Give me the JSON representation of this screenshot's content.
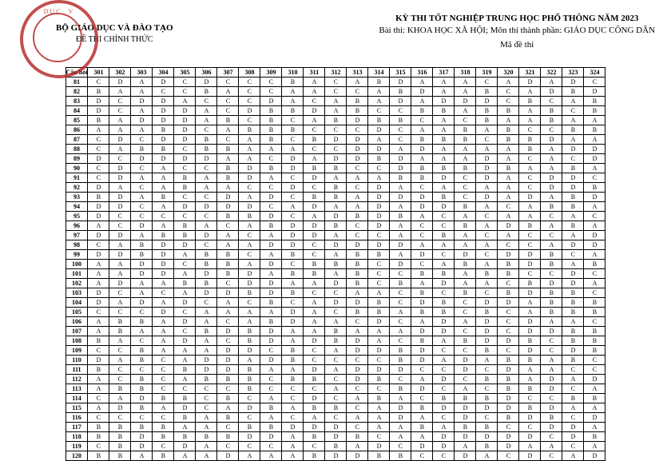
{
  "header": {
    "ministry": "BỘ GIÁO DỤC VÀ ĐÀO TẠO",
    "official": "ĐỀ THI CHÍNH THỨC",
    "exam_title": "KỲ THI TỐT NGHIỆP TRUNG HỌC PHỔ THÔNG NĂM 2023",
    "subject_line": "Bài thi: KHOA HỌC XÃ HỘI; Môn thi thành phần: GIÁO DỤC CÔNG DÂN",
    "made_thi": "Mã đề thi"
  },
  "cols_label": "Câu hỏi",
  "codes": [
    "301",
    "302",
    "303",
    "304",
    "305",
    "306",
    "307",
    "308",
    "309",
    "310",
    "311",
    "312",
    "313",
    "314",
    "315",
    "316",
    "317",
    "318",
    "319",
    "320",
    "321",
    "322",
    "323",
    "324"
  ],
  "rows": [
    {
      "q": "81",
      "a": [
        "C",
        "D",
        "A",
        "D",
        "C",
        "D",
        "C",
        "C",
        "C",
        "B",
        "A",
        "C",
        "A",
        "B",
        "D",
        "A",
        "A",
        "A",
        "C",
        "A",
        "D",
        "A",
        "D",
        "C"
      ]
    },
    {
      "q": "82",
      "a": [
        "B",
        "A",
        "A",
        "C",
        "C",
        "B",
        "A",
        "C",
        "C",
        "A",
        "A",
        "C",
        "C",
        "A",
        "B",
        "D",
        "A",
        "A",
        "B",
        "C",
        "A",
        "D",
        "B",
        "D"
      ]
    },
    {
      "q": "83",
      "a": [
        "D",
        "C",
        "D",
        "D",
        "A",
        "C",
        "C",
        "C",
        "D",
        "A",
        "C",
        "A",
        "B",
        "A",
        "D",
        "A",
        "D",
        "D",
        "D",
        "C",
        "B",
        "C",
        "A",
        "B"
      ]
    },
    {
      "q": "84",
      "a": [
        "D",
        "C",
        "A",
        "D",
        "D",
        "A",
        "C",
        "D",
        "B",
        "B",
        "D",
        "A",
        "B",
        "C",
        "C",
        "B",
        "B",
        "A",
        "B",
        "B",
        "A",
        "B",
        "C",
        "B"
      ]
    },
    {
      "q": "85",
      "a": [
        "B",
        "A",
        "D",
        "D",
        "D",
        "A",
        "B",
        "C",
        "B",
        "C",
        "A",
        "B",
        "D",
        "B",
        "B",
        "C",
        "A",
        "C",
        "B",
        "A",
        "A",
        "B",
        "A",
        "A"
      ]
    },
    {
      "q": "86",
      "a": [
        "A",
        "A",
        "A",
        "B",
        "D",
        "C",
        "A",
        "B",
        "B",
        "B",
        "C",
        "C",
        "C",
        "D",
        "C",
        "A",
        "A",
        "B",
        "A",
        "B",
        "C",
        "C",
        "B",
        "B"
      ]
    },
    {
      "q": "87",
      "a": [
        "C",
        "D",
        "C",
        "D",
        "D",
        "B",
        "C",
        "A",
        "B",
        "C",
        "B",
        "D",
        "D",
        "A",
        "C",
        "B",
        "B",
        "B",
        "C",
        "B",
        "B",
        "D",
        "A",
        "A"
      ]
    },
    {
      "q": "88",
      "a": [
        "C",
        "A",
        "B",
        "B",
        "C",
        "B",
        "B",
        "A",
        "A",
        "A",
        "C",
        "C",
        "D",
        "D",
        "A",
        "D",
        "A",
        "A",
        "A",
        "A",
        "B",
        "A",
        "D",
        "D"
      ]
    },
    {
      "q": "89",
      "a": [
        "D",
        "C",
        "D",
        "D",
        "D",
        "D",
        "A",
        "A",
        "C",
        "D",
        "A",
        "D",
        "D",
        "B",
        "D",
        "A",
        "A",
        "A",
        "D",
        "A",
        "C",
        "A",
        "C",
        "D"
      ]
    },
    {
      "q": "90",
      "a": [
        "C",
        "D",
        "C",
        "A",
        "C",
        "C",
        "B",
        "D",
        "B",
        "D",
        "B",
        "B",
        "C",
        "C",
        "D",
        "B",
        "B",
        "B",
        "D",
        "B",
        "A",
        "A",
        "B",
        "A"
      ]
    },
    {
      "q": "91",
      "a": [
        "C",
        "D",
        "A",
        "A",
        "B",
        "A",
        "B",
        "D",
        "A",
        "C",
        "D",
        "A",
        "A",
        "A",
        "B",
        "B",
        "D",
        "C",
        "D",
        "A",
        "C",
        "D",
        "D",
        "C"
      ]
    },
    {
      "q": "92",
      "a": [
        "D",
        "A",
        "C",
        "A",
        "B",
        "A",
        "A",
        "C",
        "C",
        "D",
        "C",
        "B",
        "C",
        "D",
        "A",
        "C",
        "A",
        "C",
        "A",
        "A",
        "C",
        "D",
        "D",
        "B"
      ]
    },
    {
      "q": "93",
      "a": [
        "B",
        "D",
        "A",
        "B",
        "C",
        "C",
        "D",
        "A",
        "D",
        "C",
        "B",
        "B",
        "A",
        "D",
        "D",
        "D",
        "B",
        "C",
        "D",
        "A",
        "D",
        "A",
        "B",
        "D"
      ]
    },
    {
      "q": "94",
      "a": [
        "D",
        "D",
        "C",
        "A",
        "D",
        "D",
        "D",
        "D",
        "C",
        "A",
        "D",
        "A",
        "A",
        "D",
        "A",
        "D",
        "D",
        "B",
        "A",
        "C",
        "A",
        "B",
        "B",
        "A"
      ]
    },
    {
      "q": "95",
      "a": [
        "D",
        "C",
        "C",
        "C",
        "C",
        "C",
        "B",
        "B",
        "D",
        "C",
        "A",
        "D",
        "B",
        "D",
        "B",
        "A",
        "C",
        "A",
        "C",
        "A",
        "A",
        "C",
        "A",
        "C"
      ]
    },
    {
      "q": "96",
      "a": [
        "A",
        "C",
        "D",
        "A",
        "B",
        "A",
        "C",
        "A",
        "B",
        "D",
        "D",
        "B",
        "C",
        "D",
        "A",
        "C",
        "C",
        "B",
        "A",
        "D",
        "B",
        "A",
        "B",
        "A"
      ]
    },
    {
      "q": "97",
      "a": [
        "D",
        "D",
        "A",
        "B",
        "B",
        "D",
        "A",
        "C",
        "A",
        "D",
        "D",
        "A",
        "C",
        "C",
        "A",
        "C",
        "B",
        "A",
        "C",
        "A",
        "C",
        "C",
        "A",
        "D"
      ]
    },
    {
      "q": "98",
      "a": [
        "C",
        "A",
        "B",
        "D",
        "D",
        "C",
        "A",
        "A",
        "D",
        "D",
        "C",
        "D",
        "D",
        "D",
        "D",
        "A",
        "A",
        "A",
        "A",
        "C",
        "C",
        "A",
        "D",
        "D"
      ]
    },
    {
      "q": "99",
      "a": [
        "D",
        "D",
        "B",
        "D",
        "A",
        "B",
        "B",
        "C",
        "A",
        "B",
        "C",
        "A",
        "B",
        "B",
        "A",
        "D",
        "C",
        "D",
        "C",
        "D",
        "D",
        "B",
        "C",
        "A"
      ]
    },
    {
      "q": "100",
      "a": [
        "A",
        "A",
        "D",
        "D",
        "C",
        "B",
        "B",
        "A",
        "D",
        "C",
        "B",
        "B",
        "B",
        "C",
        "D",
        "C",
        "A",
        "B",
        "A",
        "B",
        "D",
        "B",
        "A",
        "B"
      ]
    },
    {
      "q": "101",
      "a": [
        "A",
        "A",
        "D",
        "D",
        "A",
        "D",
        "B",
        "D",
        "A",
        "B",
        "B",
        "A",
        "B",
        "C",
        "C",
        "B",
        "B",
        "A",
        "B",
        "B",
        "C",
        "C",
        "D",
        "C"
      ]
    },
    {
      "q": "102",
      "a": [
        "A",
        "D",
        "A",
        "A",
        "B",
        "B",
        "C",
        "D",
        "D",
        "A",
        "A",
        "D",
        "B",
        "C",
        "B",
        "A",
        "D",
        "A",
        "A",
        "C",
        "B",
        "D",
        "D",
        "A"
      ]
    },
    {
      "q": "103",
      "a": [
        "D",
        "C",
        "A",
        "C",
        "A",
        "D",
        "D",
        "B",
        "D",
        "B",
        "C",
        "C",
        "A",
        "A",
        "C",
        "B",
        "C",
        "B",
        "C",
        "B",
        "D",
        "B",
        "B",
        "C"
      ]
    },
    {
      "q": "104",
      "a": [
        "D",
        "A",
        "D",
        "A",
        "D",
        "C",
        "A",
        "C",
        "B",
        "C",
        "A",
        "D",
        "D",
        "B",
        "C",
        "D",
        "B",
        "C",
        "D",
        "D",
        "A",
        "B",
        "B",
        "B"
      ]
    },
    {
      "q": "105",
      "a": [
        "C",
        "C",
        "C",
        "D",
        "C",
        "A",
        "A",
        "A",
        "A",
        "D",
        "A",
        "C",
        "B",
        "B",
        "A",
        "B",
        "B",
        "C",
        "B",
        "C",
        "A",
        "B",
        "B",
        "B"
      ]
    },
    {
      "q": "106",
      "a": [
        "A",
        "B",
        "B",
        "A",
        "D",
        "A",
        "C",
        "A",
        "B",
        "D",
        "A",
        "A",
        "C",
        "D",
        "C",
        "A",
        "D",
        "A",
        "D",
        "C",
        "D",
        "A",
        "A",
        "C"
      ]
    },
    {
      "q": "107",
      "a": [
        "A",
        "B",
        "A",
        "A",
        "C",
        "B",
        "D",
        "B",
        "D",
        "A",
        "A",
        "B",
        "A",
        "A",
        "A",
        "D",
        "D",
        "C",
        "D",
        "C",
        "D",
        "D",
        "B",
        "B"
      ]
    },
    {
      "q": "108",
      "a": [
        "B",
        "A",
        "C",
        "A",
        "D",
        "A",
        "C",
        "B",
        "D",
        "A",
        "D",
        "B",
        "D",
        "A",
        "C",
        "B",
        "A",
        "B",
        "D",
        "D",
        "B",
        "C",
        "B",
        "B"
      ]
    },
    {
      "q": "109",
      "a": [
        "C",
        "C",
        "B",
        "A",
        "A",
        "A",
        "D",
        "D",
        "C",
        "B",
        "C",
        "A",
        "D",
        "D",
        "B",
        "D",
        "C",
        "C",
        "B",
        "C",
        "D",
        "C",
        "D",
        "B"
      ]
    },
    {
      "q": "110",
      "a": [
        "D",
        "A",
        "B",
        "C",
        "A",
        "D",
        "D",
        "A",
        "D",
        "B",
        "C",
        "C",
        "C",
        "C",
        "B",
        "D",
        "A",
        "D",
        "A",
        "B",
        "B",
        "A",
        "B",
        "C"
      ]
    },
    {
      "q": "111",
      "a": [
        "B",
        "C",
        "C",
        "C",
        "B",
        "D",
        "D",
        "B",
        "A",
        "A",
        "D",
        "A",
        "D",
        "D",
        "D",
        "C",
        "C",
        "D",
        "C",
        "D",
        "A",
        "A",
        "C",
        "C"
      ]
    },
    {
      "q": "112",
      "a": [
        "A",
        "C",
        "B",
        "C",
        "A",
        "B",
        "B",
        "B",
        "C",
        "B",
        "B",
        "C",
        "D",
        "B",
        "C",
        "A",
        "D",
        "C",
        "B",
        "B",
        "A",
        "D",
        "A",
        "D"
      ]
    },
    {
      "q": "113",
      "a": [
        "A",
        "B",
        "B",
        "C",
        "C",
        "C",
        "C",
        "B",
        "C",
        "C",
        "C",
        "A",
        "C",
        "C",
        "B",
        "D",
        "C",
        "A",
        "C",
        "B",
        "B",
        "D",
        "C",
        "A"
      ]
    },
    {
      "q": "114",
      "a": [
        "C",
        "A",
        "D",
        "B",
        "B",
        "C",
        "B",
        "C",
        "A",
        "C",
        "D",
        "C",
        "A",
        "B",
        "A",
        "C",
        "B",
        "B",
        "B",
        "D",
        "C",
        "C",
        "B",
        "B"
      ]
    },
    {
      "q": "115",
      "a": [
        "A",
        "D",
        "B",
        "A",
        "D",
        "C",
        "A",
        "D",
        "B",
        "A",
        "B",
        "B",
        "C",
        "A",
        "D",
        "B",
        "D",
        "D",
        "D",
        "D",
        "B",
        "D",
        "A",
        "A"
      ]
    },
    {
      "q": "116",
      "a": [
        "C",
        "C",
        "C",
        "C",
        "B",
        "A",
        "B",
        "C",
        "A",
        "C",
        "A",
        "C",
        "A",
        "A",
        "D",
        "A",
        "C",
        "D",
        "C",
        "B",
        "D",
        "B",
        "C",
        "D"
      ]
    },
    {
      "q": "117",
      "a": [
        "B",
        "B",
        "B",
        "B",
        "A",
        "A",
        "C",
        "B",
        "B",
        "D",
        "D",
        "D",
        "C",
        "A",
        "A",
        "B",
        "A",
        "B",
        "B",
        "C",
        "C",
        "D",
        "D",
        "A"
      ]
    },
    {
      "q": "118",
      "a": [
        "B",
        "B",
        "D",
        "B",
        "B",
        "B",
        "B",
        "D",
        "D",
        "A",
        "B",
        "D",
        "B",
        "C",
        "A",
        "A",
        "D",
        "D",
        "D",
        "D",
        "D",
        "C",
        "D",
        "B"
      ]
    },
    {
      "q": "119",
      "a": [
        "C",
        "B",
        "D",
        "C",
        "D",
        "A",
        "C",
        "C",
        "C",
        "A",
        "C",
        "B",
        "A",
        "D",
        "C",
        "D",
        "D",
        "A",
        "B",
        "D",
        "A",
        "A",
        "C",
        "A"
      ]
    },
    {
      "q": "120",
      "a": [
        "B",
        "B",
        "A",
        "B",
        "A",
        "A",
        "D",
        "A",
        "A",
        "A",
        "B",
        "D",
        "D",
        "B",
        "B",
        "C",
        "C",
        "D",
        "A",
        "C",
        "D",
        "C",
        "A",
        "D"
      ]
    }
  ]
}
